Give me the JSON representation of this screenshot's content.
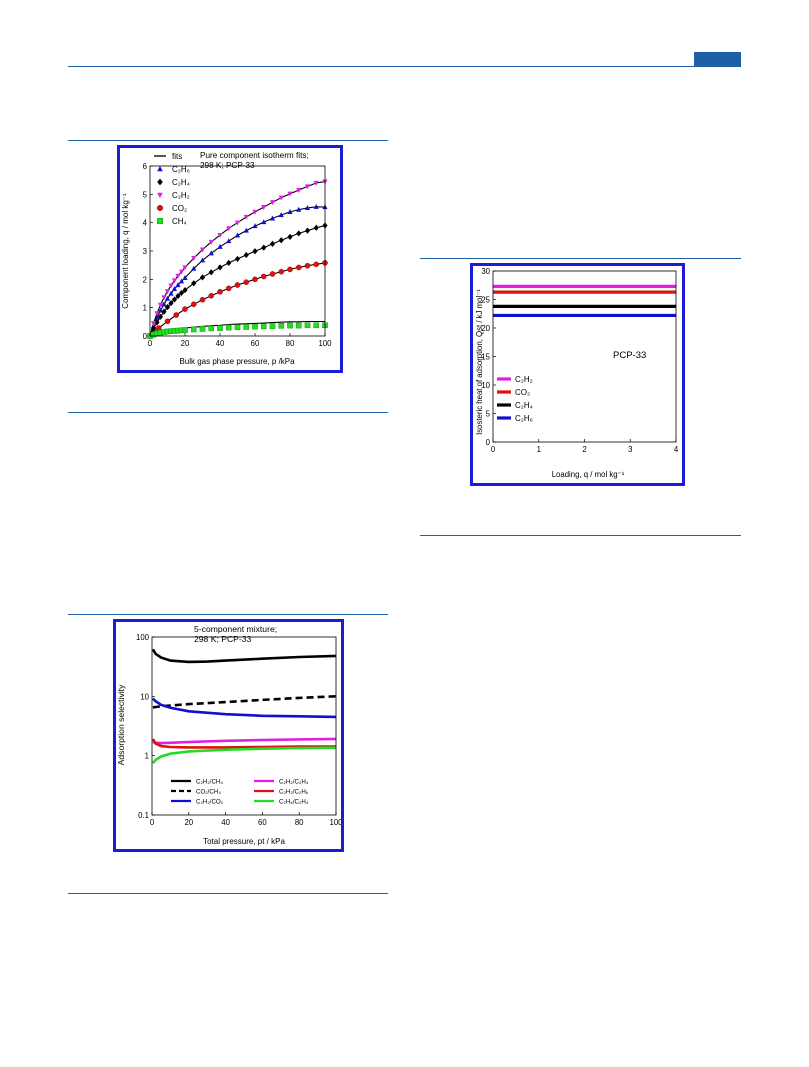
{
  "colors": {
    "rule": "#1f5fa8",
    "frame": "#1c1cd8",
    "magenta": "#e020e0",
    "blue": "#1010d0",
    "black": "#000000",
    "red": "#e01010",
    "green": "#22dd22"
  },
  "fig1": {
    "chart_data": {
      "type": "scatter",
      "title": "Pure component isotherm fits;",
      "subtitle": "298 K; PCP-33",
      "xlabel": "Bulk gas phase pressure, p /kPa",
      "ylabel": "Component loading, q / mol kg⁻¹",
      "xlim": [
        0,
        100
      ],
      "ylim": [
        0,
        6
      ],
      "xticks": [
        "0",
        "20",
        "40",
        "60",
        "80",
        "100"
      ],
      "yticks": [
        "0",
        "1",
        "2",
        "3",
        "4",
        "5",
        "6"
      ],
      "legend_position": "top-left",
      "series": [
        {
          "name": "fits",
          "marker": "line",
          "color": "#000000"
        },
        {
          "name": "C₂H₆",
          "marker": "triangle-up",
          "color": "#1010d0",
          "x": [
            0,
            2,
            4,
            6,
            8,
            10,
            12,
            14,
            16,
            18,
            20,
            25,
            30,
            35,
            40,
            45,
            50,
            55,
            60,
            65,
            70,
            75,
            80,
            85,
            90,
            95,
            100
          ],
          "y": [
            0,
            0.35,
            0.65,
            0.9,
            1.12,
            1.32,
            1.5,
            1.66,
            1.8,
            1.93,
            2.05,
            2.38,
            2.67,
            2.92,
            3.15,
            3.35,
            3.55,
            3.72,
            3.88,
            4.02,
            4.15,
            4.27,
            4.38,
            4.46,
            4.52,
            4.56,
            4.55
          ]
        },
        {
          "name": "C₂H₄",
          "marker": "diamond",
          "color": "#000000",
          "x": [
            0,
            2,
            4,
            6,
            8,
            10,
            12,
            14,
            16,
            18,
            20,
            25,
            30,
            35,
            40,
            45,
            50,
            55,
            60,
            65,
            70,
            75,
            80,
            85,
            90,
            95,
            100
          ],
          "y": [
            0,
            0.25,
            0.48,
            0.68,
            0.86,
            1.02,
            1.16,
            1.29,
            1.41,
            1.52,
            1.62,
            1.86,
            2.07,
            2.25,
            2.42,
            2.58,
            2.72,
            2.86,
            2.99,
            3.12,
            3.25,
            3.38,
            3.5,
            3.62,
            3.72,
            3.82,
            3.9
          ]
        },
        {
          "name": "C₂H₂",
          "marker": "triangle-down",
          "color": "#e020e0",
          "x": [
            0,
            2,
            4,
            6,
            8,
            10,
            12,
            14,
            16,
            18,
            20,
            25,
            30,
            35,
            40,
            45,
            50,
            55,
            60,
            65,
            70,
            75,
            80,
            85,
            90,
            95,
            100
          ],
          "y": [
            0,
            0.45,
            0.8,
            1.1,
            1.36,
            1.58,
            1.78,
            1.96,
            2.12,
            2.27,
            2.42,
            2.75,
            3.05,
            3.32,
            3.56,
            3.8,
            4.0,
            4.2,
            4.38,
            4.55,
            4.72,
            4.88,
            5.02,
            5.15,
            5.28,
            5.4,
            5.45
          ]
        },
        {
          "name": "CO₂",
          "marker": "circle",
          "color": "#e01010",
          "x": [
            0,
            5,
            10,
            15,
            20,
            25,
            30,
            35,
            40,
            45,
            50,
            55,
            60,
            65,
            70,
            75,
            80,
            85,
            90,
            95,
            100
          ],
          "y": [
            0,
            0.28,
            0.52,
            0.74,
            0.95,
            1.12,
            1.28,
            1.42,
            1.56,
            1.68,
            1.8,
            1.9,
            2.0,
            2.1,
            2.19,
            2.27,
            2.35,
            2.42,
            2.48,
            2.53,
            2.58
          ]
        },
        {
          "name": "CH₄",
          "marker": "square",
          "color": "#22dd22",
          "x": [
            0,
            2,
            4,
            6,
            8,
            10,
            12,
            14,
            16,
            18,
            20,
            25,
            30,
            35,
            40,
            45,
            50,
            55,
            60,
            65,
            70,
            75,
            80,
            85,
            90,
            95,
            100
          ],
          "y": [
            0,
            0.05,
            0.09,
            0.12,
            0.14,
            0.16,
            0.17,
            0.18,
            0.19,
            0.2,
            0.21,
            0.23,
            0.25,
            0.27,
            0.28,
            0.3,
            0.31,
            0.32,
            0.33,
            0.34,
            0.35,
            0.36,
            0.37,
            0.37,
            0.38,
            0.38,
            0.38
          ]
        }
      ]
    }
  },
  "fig2": {
    "chart_data": {
      "type": "line",
      "annotation": "PCP-33",
      "xlabel": "Loading, q / mol kg⁻¹",
      "ylabel": "Isosteric heat of adsorption, Qst / kJ mol⁻¹",
      "xlim": [
        0,
        4
      ],
      "ylim": [
        0,
        30
      ],
      "xticks": [
        "0",
        "1",
        "2",
        "3",
        "4"
      ],
      "yticks": [
        "0",
        "5",
        "10",
        "15",
        "20",
        "25",
        "30"
      ],
      "legend_position": "middle-left",
      "series": [
        {
          "name": "C₂H₂",
          "color": "#e020e0",
          "x": [
            0,
            4
          ],
          "y": [
            27.3,
            27.3
          ]
        },
        {
          "name": "CO₂",
          "color": "#e01010",
          "x": [
            0,
            4
          ],
          "y": [
            26.3,
            26.3
          ]
        },
        {
          "name": "C₂H₄",
          "color": "#000000",
          "x": [
            0,
            4
          ],
          "y": [
            23.8,
            23.8
          ]
        },
        {
          "name": "C₂H₆",
          "color": "#1010d0",
          "x": [
            0,
            4
          ],
          "y": [
            22.2,
            22.2
          ]
        }
      ]
    }
  },
  "fig3": {
    "chart_data": {
      "type": "line",
      "title": "5-component mixture;",
      "subtitle": "298 K; PCP-33",
      "xlabel": "Total pressure, pt / kPa",
      "ylabel": "Adsorption selectivity",
      "xlim": [
        0,
        100
      ],
      "ylim": [
        0.1,
        100
      ],
      "yscale": "log",
      "xticks": [
        "0",
        "20",
        "40",
        "60",
        "80",
        "100"
      ],
      "yticks": [
        "0.1",
        "1",
        "10",
        "100"
      ],
      "legend_position": "bottom",
      "series": [
        {
          "name": "C₂H₂/CH₄",
          "color": "#000000",
          "dash": "solid",
          "x": [
            0.5,
            2,
            5,
            10,
            20,
            30,
            40,
            60,
            80,
            100
          ],
          "y": [
            62,
            52,
            45,
            40,
            38,
            38.5,
            40,
            43,
            46,
            48
          ]
        },
        {
          "name": "CO₂/CH₄",
          "color": "#000000",
          "dash": "dashed",
          "x": [
            0.5,
            2,
            5,
            10,
            20,
            40,
            60,
            80,
            100
          ],
          "y": [
            6.5,
            6.6,
            6.8,
            7.0,
            7.4,
            8.0,
            8.7,
            9.4,
            10.0
          ]
        },
        {
          "name": "C₂H₂/CO₂",
          "color": "#1010d0",
          "dash": "solid",
          "x": [
            0.5,
            2,
            5,
            10,
            20,
            40,
            60,
            80,
            100
          ],
          "y": [
            9.2,
            8.2,
            7.2,
            6.4,
            5.6,
            5.0,
            4.7,
            4.6,
            4.5
          ]
        },
        {
          "name": "C₂H₂/C₂H₄",
          "color": "#e020e0",
          "dash": "solid",
          "x": [
            0.5,
            2,
            5,
            10,
            20,
            40,
            60,
            80,
            100
          ],
          "y": [
            1.7,
            1.65,
            1.63,
            1.65,
            1.7,
            1.78,
            1.84,
            1.88,
            1.92
          ]
        },
        {
          "name": "C₂H₂/C₂H₆",
          "color": "#e01010",
          "dash": "solid",
          "x": [
            0.5,
            2,
            5,
            10,
            20,
            40,
            60,
            80,
            100
          ],
          "y": [
            1.9,
            1.6,
            1.45,
            1.4,
            1.38,
            1.38,
            1.4,
            1.42,
            1.43
          ]
        },
        {
          "name": "C₂H₆/C₂H₄",
          "color": "#22dd22",
          "dash": "solid",
          "x": [
            0.5,
            2,
            5,
            10,
            20,
            40,
            60,
            80,
            100
          ],
          "y": [
            0.75,
            0.85,
            0.97,
            1.08,
            1.18,
            1.26,
            1.31,
            1.34,
            1.36
          ]
        }
      ]
    }
  }
}
